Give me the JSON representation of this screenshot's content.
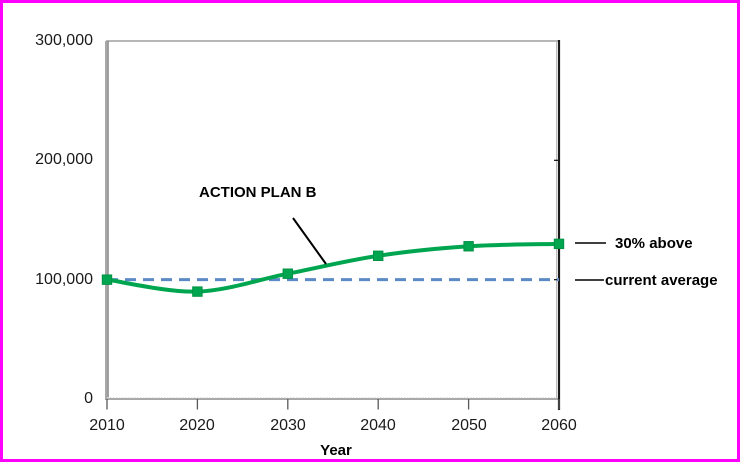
{
  "frame": {
    "border_color": "#FF00FF",
    "background": "#FFFFFF"
  },
  "chart_data": {
    "type": "line",
    "title": "",
    "xlabel": "Year",
    "ylabel": "",
    "x": [
      2010,
      2020,
      2030,
      2040,
      2050,
      2060
    ],
    "x_tick_labels": [
      "2010",
      "2020",
      "2030",
      "2040",
      "2050",
      "2060"
    ],
    "y_ticks": [
      300000,
      200000,
      100000,
      0
    ],
    "y_tick_labels": [
      "300,000",
      "200,000",
      "100,000",
      "0"
    ],
    "xlim": [
      2010,
      2060
    ],
    "ylim": [
      0,
      300000
    ],
    "grid": false,
    "legend_position": "none",
    "series": [
      {
        "name": "ACTION PLAN B",
        "style": "smooth",
        "color": "#00A64F",
        "marker": "square",
        "marker_color": "#00A64F",
        "values": [
          100000,
          90000,
          105000,
          120000,
          128000,
          130000
        ]
      },
      {
        "name": "current average",
        "style": "dashed",
        "color": "#5B8AC6",
        "marker": "none",
        "values": [
          100000,
          100000,
          100000,
          100000,
          100000,
          100000
        ]
      }
    ],
    "annotations": [
      {
        "id": "series-label",
        "text": "ACTION PLAN B"
      },
      {
        "id": "above-label",
        "text": "30% above"
      },
      {
        "id": "current-label",
        "text": "current average"
      }
    ]
  }
}
